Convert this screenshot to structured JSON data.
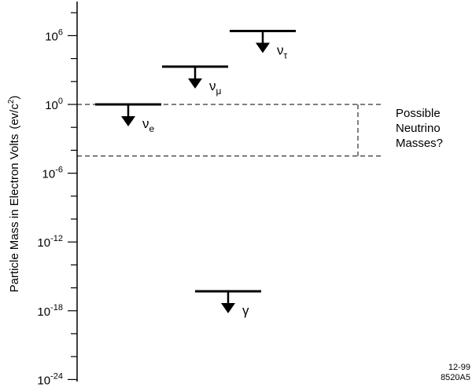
{
  "chart_data": {
    "type": "scatter",
    "ylabel": "Particle Mass in Electron Volts",
    "ylabel_units": "(ev/c",
    "ylabel_units_sup": "2",
    "ylabel_units_close": ")",
    "yscale": "log",
    "ylim_exponent": [
      -24,
      11
    ],
    "y_ticks": [
      {
        "exp": 6,
        "base": "10",
        "sup": "6"
      },
      {
        "exp": 0,
        "base": "10",
        "sup": "0"
      },
      {
        "exp": -6,
        "base": "10",
        "sup": "-6"
      },
      {
        "exp": -12,
        "base": "10",
        "sup": "-12"
      },
      {
        "exp": -18,
        "base": "10",
        "sup": "-18"
      },
      {
        "exp": -24,
        "base": "10",
        "sup": "-24"
      }
    ],
    "minor_tick_step_exp": 2,
    "upper_limits": [
      {
        "particle": "ν",
        "subscript": "e",
        "limit_exp": 0
      },
      {
        "particle": "ν",
        "subscript": "μ",
        "limit_exp": 3.3
      },
      {
        "particle": "ν",
        "subscript": "τ",
        "limit_exp": 6.4
      },
      {
        "particle": "γ",
        "subscript": "",
        "limit_exp": -16.3
      }
    ],
    "region": {
      "label_lines": [
        "Possible",
        "Neutrino",
        "Masses?"
      ],
      "y_range_exp": [
        -4.5,
        0
      ]
    }
  },
  "footer": {
    "date": "12-99",
    "code": "8520A5"
  }
}
